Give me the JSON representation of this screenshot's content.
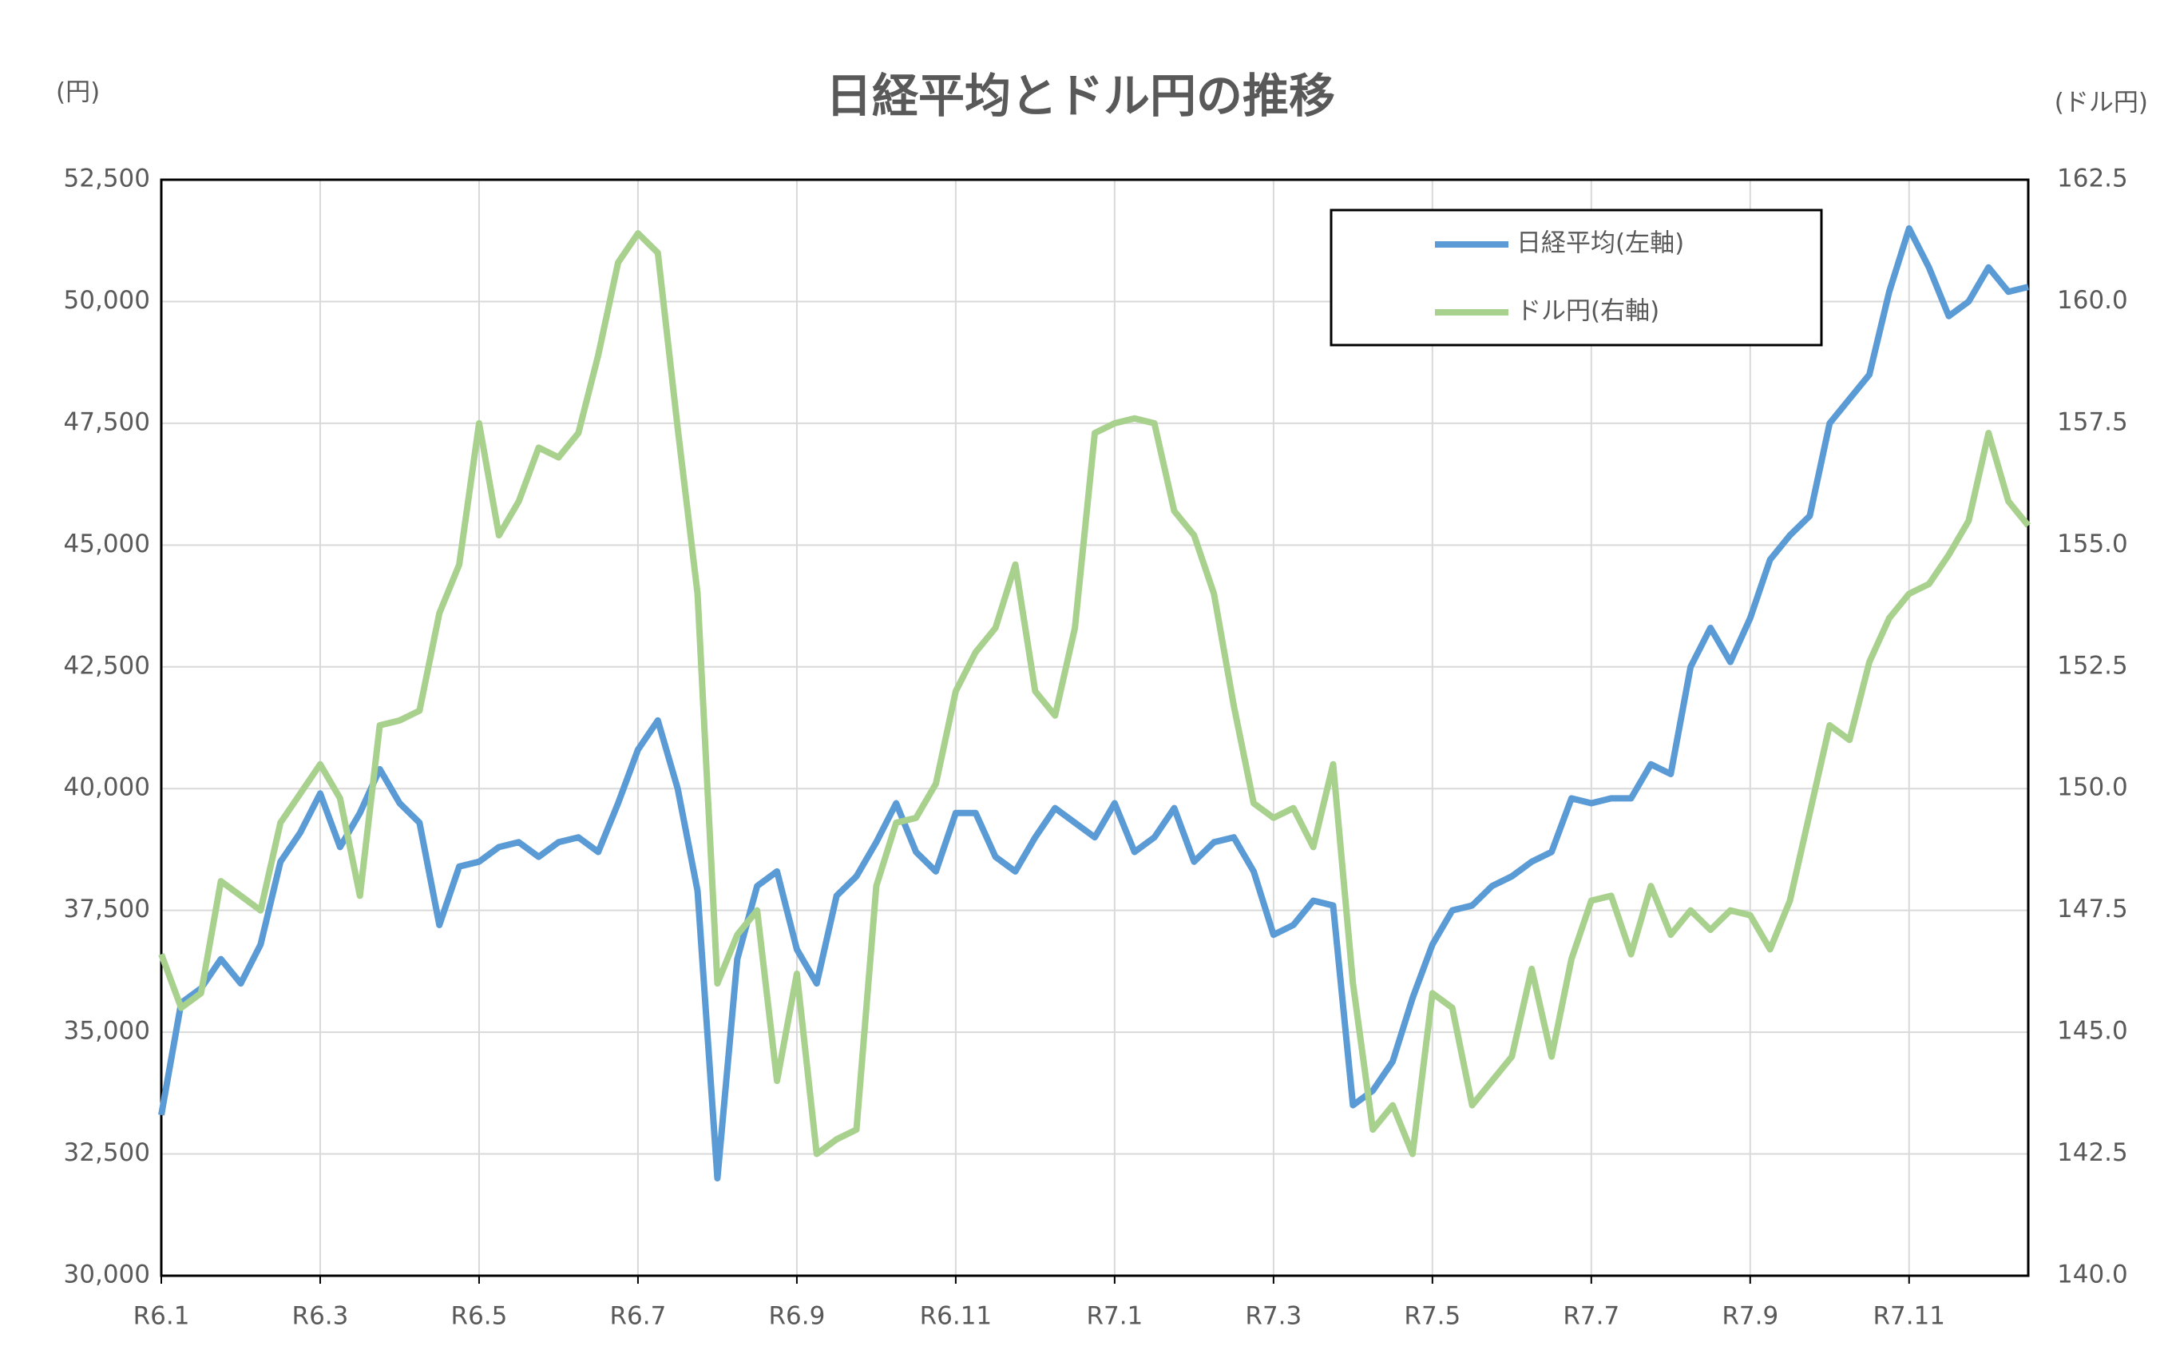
{
  "chart_data": {
    "type": "line",
    "title": "日経平均とドル円の推移",
    "y_axis_label": "(円)",
    "y2_axis_label": "(ドル円)",
    "categories": [
      "R6.1",
      null,
      null,
      null,
      null,
      null,
      null,
      null,
      "R6.3",
      null,
      null,
      null,
      null,
      null,
      null,
      null,
      "R6.5",
      null,
      null,
      null,
      null,
      null,
      null,
      null,
      "R6.7",
      null,
      null,
      null,
      null,
      null,
      null,
      null,
      "R6.9",
      null,
      null,
      null,
      null,
      null,
      null,
      null,
      "R6.11",
      null,
      null,
      null,
      null,
      null,
      null,
      null,
      "R7.1",
      null,
      null,
      null,
      null,
      null,
      null,
      null,
      "R7.3",
      null,
      null,
      null,
      null,
      null,
      null,
      null,
      "R7.5",
      null,
      null,
      null,
      null,
      null,
      null,
      null,
      "R7.7",
      null,
      null,
      null,
      null,
      null,
      null,
      null,
      "R7.9",
      null,
      null,
      null,
      null,
      null,
      null,
      null,
      "R7.11",
      null,
      null,
      null,
      null,
      null,
      null
    ],
    "series": [
      {
        "name": "日経平均(左軸)",
        "color": "#5b9bd5",
        "axis": "y",
        "values": [
          33300,
          35600,
          35900,
          36500,
          36000,
          36800,
          38500,
          39100,
          39900,
          38800,
          39500,
          40400,
          39700,
          39300,
          37200,
          38400,
          38500,
          38800,
          38900,
          38600,
          38900,
          39000,
          38700,
          39700,
          40800,
          41400,
          40000,
          37900,
          32000,
          36500,
          38000,
          38300,
          36700,
          36000,
          37800,
          38200,
          38900,
          39700,
          38700,
          38300,
          39500,
          39500,
          38600,
          38300,
          39000,
          39600,
          39300,
          39000,
          39700,
          38700,
          39000,
          39600,
          38500,
          38900,
          39000,
          38300,
          37000,
          37200,
          37700,
          37600,
          33500,
          33800,
          34400,
          35700,
          36800,
          37500,
          37600,
          38000,
          38200,
          38500,
          38700,
          39800,
          39700,
          39800,
          39800,
          40500,
          40300,
          42500,
          43300,
          42600,
          43500,
          44700,
          45200,
          45600,
          47500,
          48000,
          48500,
          50200,
          51500,
          50700,
          49700,
          50000,
          50700,
          50200,
          50300
        ]
      },
      {
        "name": "ドル円(右軸)",
        "color": "#a9d18e",
        "axis": "y2",
        "values": [
          146.6,
          145.5,
          145.8,
          148.1,
          147.8,
          147.5,
          149.3,
          149.9,
          150.5,
          149.8,
          147.8,
          151.3,
          151.4,
          151.6,
          153.6,
          154.6,
          157.5,
          155.2,
          155.9,
          157.0,
          156.8,
          157.3,
          158.9,
          160.8,
          161.4,
          161.0,
          157.4,
          154.0,
          146.0,
          147.0,
          147.5,
          144.0,
          146.2,
          142.5,
          142.8,
          143.0,
          148.0,
          149.3,
          149.4,
          150.1,
          152.0,
          152.8,
          153.3,
          154.6,
          152.0,
          151.5,
          153.3,
          157.3,
          157.5,
          157.6,
          157.5,
          155.7,
          155.2,
          154.0,
          151.7,
          149.7,
          149.4,
          149.6,
          148.8,
          150.5,
          146.0,
          143.0,
          143.5,
          142.5,
          145.8,
          145.5,
          143.5,
          144.0,
          144.5,
          146.3,
          144.5,
          146.5,
          147.7,
          147.8,
          146.6,
          148.0,
          147.0,
          147.5,
          147.1,
          147.5,
          147.4,
          146.7,
          147.7,
          149.5,
          151.3,
          151.0,
          152.6,
          153.5,
          154.0,
          154.2,
          154.8,
          155.5,
          157.3,
          155.9,
          155.4
        ]
      }
    ],
    "ylim": [
      30000,
      52500
    ],
    "yticks": [
      {
        "value": 30000,
        "label": "30,000"
      },
      {
        "value": 32500,
        "label": "32,500"
      },
      {
        "value": 35000,
        "label": "35,000"
      },
      {
        "value": 37500,
        "label": "37,500"
      },
      {
        "value": 40000,
        "label": "40,000"
      },
      {
        "value": 42500,
        "label": "42,500"
      },
      {
        "value": 45000,
        "label": "45,000"
      },
      {
        "value": 47500,
        "label": "47,500"
      },
      {
        "value": 50000,
        "label": "50,000"
      },
      {
        "value": 52500,
        "label": "52,500"
      }
    ],
    "y2lim": [
      140,
      162.5
    ],
    "y2ticks": [
      {
        "value": 140,
        "label": "140.0"
      },
      {
        "value": 142.5,
        "label": "142.5"
      },
      {
        "value": 145,
        "label": "145.0"
      },
      {
        "value": 147.5,
        "label": "147.5"
      },
      {
        "value": 150,
        "label": "150.0"
      },
      {
        "value": 152.5,
        "label": "152.5"
      },
      {
        "value": 155,
        "label": "155.0"
      },
      {
        "value": 157.5,
        "label": "157.5"
      },
      {
        "value": 160,
        "label": "160.0"
      },
      {
        "value": 162.5,
        "label": "162.5"
      }
    ],
    "grid": true,
    "legend": "upper right"
  }
}
